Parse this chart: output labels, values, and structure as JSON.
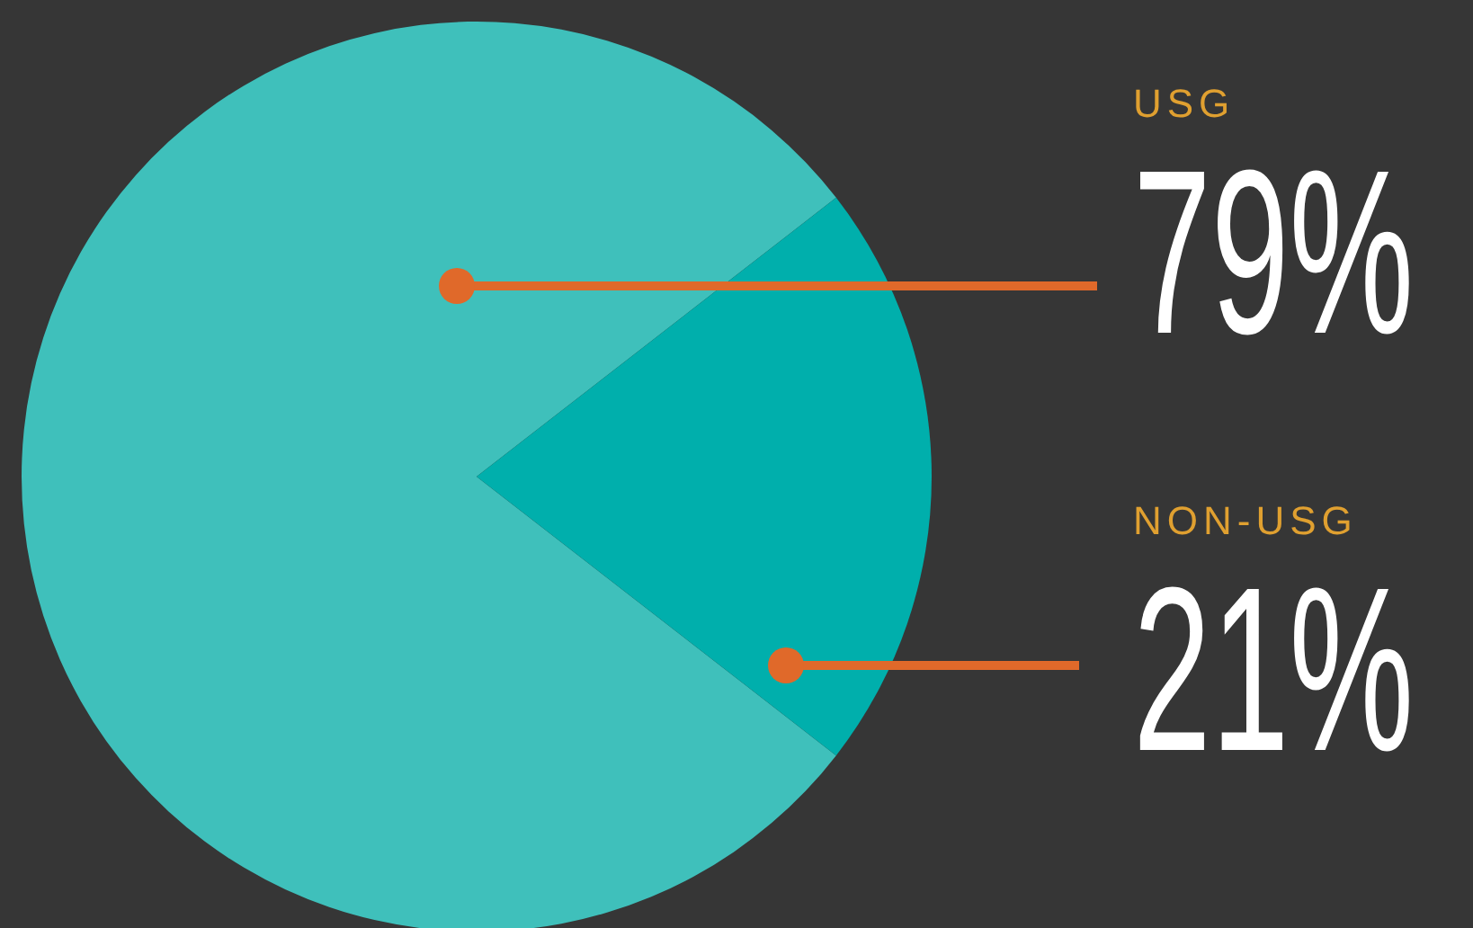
{
  "chart_data": {
    "type": "pie",
    "categories": [
      "USG",
      "NON-USG"
    ],
    "values": [
      79,
      21
    ],
    "colors": [
      "#3fc0bb",
      "#00afac"
    ],
    "value_labels": [
      "79%",
      "21%"
    ]
  }
}
